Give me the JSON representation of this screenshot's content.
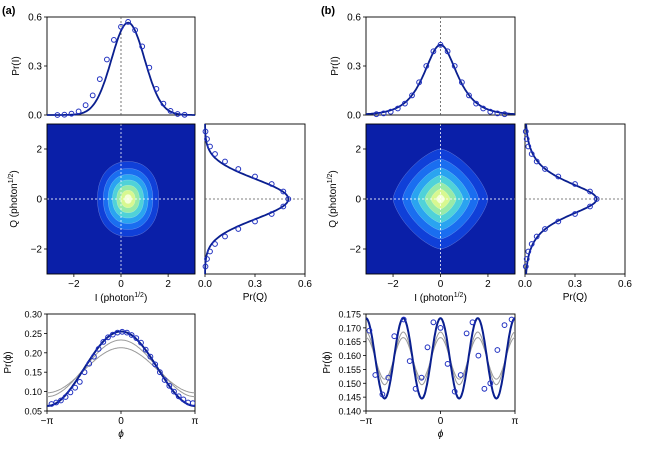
{
  "panel_labels": [
    "(a)",
    "(b)"
  ],
  "colors": {
    "model": "#0a1f8f",
    "data": "#2030c0",
    "gray": "#9a9a9a",
    "contour": [
      "#0a1fa8",
      "#1040d8",
      "#1a6ef0",
      "#2aa4f0",
      "#50d2d8",
      "#98eaa8",
      "#d8f890",
      "#f5ffd8"
    ]
  },
  "chart_data": [
    {
      "panel": "a",
      "type": "line",
      "id": "a_prI",
      "ylabel": "Pr(I)",
      "xlim": [
        -3.14,
        3.14
      ],
      "ylim": [
        0,
        0.6
      ],
      "yticks": [
        0.0,
        0.3,
        0.6
      ],
      "ytick_labels": [
        "0.0",
        "0.3",
        "0.6"
      ],
      "curve": {
        "shape": "gaussian",
        "peak": 0.565,
        "center": 0.3,
        "sigma": 0.7
      },
      "points_x": [
        -2.7,
        -2.4,
        -2.1,
        -1.8,
        -1.5,
        -1.2,
        -0.9,
        -0.6,
        -0.3,
        0.0,
        0.3,
        0.6,
        0.9,
        1.2,
        1.5,
        1.8,
        2.1,
        2.4,
        2.7
      ],
      "points_y": [
        0.0,
        0.002,
        0.008,
        0.022,
        0.06,
        0.12,
        0.22,
        0.34,
        0.46,
        0.54,
        0.57,
        0.52,
        0.42,
        0.29,
        0.16,
        0.07,
        0.025,
        0.006,
        0.001
      ]
    },
    {
      "panel": "a",
      "type": "heatmap",
      "id": "a_map",
      "xlabel": "I (photon$^{1/2}$)",
      "ylabel": "Q (photon$^{1/2}$)",
      "xlabel_text": "I (photon",
      "ylabel_text": "Q (photon",
      "unit_exp": "1/2",
      "xlim": [
        -3.14,
        3.14
      ],
      "ylim": [
        -3,
        3
      ],
      "xticks": [
        -2,
        0,
        2
      ],
      "xtick_labels": [
        "−2",
        "0",
        "2"
      ],
      "yticks": [
        -2,
        0,
        2
      ],
      "ytick_labels": [
        "−2",
        "0",
        "2"
      ],
      "levels": {
        "center": [
          0.3,
          0
        ],
        "radii": [
          [
            1.3,
            1.5
          ],
          [
            1.05,
            1.22
          ],
          [
            0.85,
            0.98
          ],
          [
            0.66,
            0.76
          ],
          [
            0.48,
            0.55
          ],
          [
            0.3,
            0.35
          ],
          [
            0.15,
            0.18
          ]
        ],
        "power": 2.2
      }
    },
    {
      "panel": "a",
      "type": "line",
      "id": "a_prQ",
      "orientation": "vertical",
      "xlabel": "Pr(Q)",
      "xlim": [
        0,
        0.6
      ],
      "ylim": [
        -3,
        3
      ],
      "xticks": [
        0.0,
        0.3,
        0.6
      ],
      "xtick_labels": [
        "0.0",
        "0.3",
        "0.6"
      ],
      "curve": {
        "shape": "gaussian",
        "peak": 0.5,
        "center": 0,
        "sigma": 0.8
      },
      "points_q": [
        2.7,
        2.4,
        2.1,
        1.8,
        1.5,
        1.2,
        0.9,
        0.6,
        0.3,
        0.0,
        -0.3,
        -0.6,
        -0.9,
        -1.2,
        -1.5,
        -1.8,
        -2.1,
        -2.4,
        -2.7
      ],
      "points_p": [
        0.003,
        0.012,
        0.03,
        0.06,
        0.12,
        0.2,
        0.3,
        0.4,
        0.47,
        0.5,
        0.47,
        0.4,
        0.3,
        0.2,
        0.12,
        0.06,
        0.03,
        0.012,
        0.003
      ]
    },
    {
      "panel": "a",
      "type": "line",
      "id": "a_phase",
      "xlabel": "ϕ",
      "ylabel": "Pr(ϕ)",
      "xlim": [
        -3.14159,
        3.14159
      ],
      "ylim": [
        0.05,
        0.3
      ],
      "xticks": [
        -3.14159,
        0,
        3.14159
      ],
      "xtick_labels": [
        "−π",
        "0",
        "π"
      ],
      "yticks": [
        0.05,
        0.1,
        0.15,
        0.2,
        0.25,
        0.3
      ],
      "ytick_labels": [
        "0.05",
        "0.10",
        "0.15",
        "0.20",
        "0.25",
        "0.30"
      ],
      "series": [
        {
          "name": "model",
          "style": "thick",
          "mean": 0.159,
          "amp": 0.096,
          "freq": 1
        },
        {
          "name": "gray1",
          "style": "gray",
          "mean": 0.155,
          "amp": 0.058,
          "freq": 1
        },
        {
          "name": "gray2",
          "style": "gray",
          "mean": 0.16,
          "amp": 0.073,
          "freq": 1
        }
      ],
      "points_x": [
        -2.95,
        -2.75,
        -2.55,
        -2.35,
        -2.15,
        -1.95,
        -1.75,
        -1.55,
        -1.35,
        -1.15,
        -0.95,
        -0.75,
        -0.55,
        -0.35,
        -0.15,
        0.05,
        0.25,
        0.45,
        0.65,
        0.85,
        1.05,
        1.25,
        1.45,
        1.65,
        1.85,
        2.05,
        2.25,
        2.45,
        2.65,
        2.85,
        3.05
      ],
      "points_y": [
        0.068,
        0.072,
        0.077,
        0.086,
        0.098,
        0.11,
        0.125,
        0.15,
        0.172,
        0.19,
        0.21,
        0.228,
        0.24,
        0.247,
        0.252,
        0.254,
        0.252,
        0.246,
        0.238,
        0.226,
        0.208,
        0.19,
        0.17,
        0.15,
        0.13,
        0.115,
        0.1,
        0.088,
        0.08,
        0.072,
        0.07
      ]
    },
    {
      "panel": "b",
      "type": "line",
      "id": "b_prI",
      "ylabel": "Pr(I)",
      "xlim": [
        -3.14,
        3.14
      ],
      "ylim": [
        0,
        0.6
      ],
      "yticks": [
        0.0,
        0.3,
        0.6
      ],
      "ytick_labels": [
        "0.0",
        "0.3",
        "0.6"
      ],
      "curve": {
        "shape": "sech",
        "peak": 0.43,
        "center": 0,
        "sigma": 0.62
      },
      "points_x": [
        -2.7,
        -2.4,
        -2.1,
        -1.8,
        -1.5,
        -1.2,
        -0.9,
        -0.6,
        -0.3,
        0.0,
        0.3,
        0.6,
        0.9,
        1.2,
        1.5,
        1.8,
        2.1,
        2.4,
        2.7
      ],
      "points_y": [
        0.005,
        0.01,
        0.02,
        0.04,
        0.07,
        0.12,
        0.2,
        0.3,
        0.39,
        0.43,
        0.39,
        0.3,
        0.2,
        0.12,
        0.07,
        0.04,
        0.02,
        0.01,
        0.005
      ]
    },
    {
      "panel": "b",
      "type": "heatmap",
      "id": "b_map",
      "xlabel": "I (photon$^{1/2}$)",
      "ylabel": "Q (photon$^{1/2}$)",
      "xlabel_text": "I (photon",
      "ylabel_text": "Q (photon",
      "unit_exp": "1/2",
      "xlim": [
        -3.14,
        3.14
      ],
      "ylim": [
        -3,
        3
      ],
      "xticks": [
        -2,
        0,
        2
      ],
      "xtick_labels": [
        "−2",
        "0",
        "2"
      ],
      "yticks": [
        -2,
        0,
        2
      ],
      "ytick_labels": [
        "−2",
        "0",
        "2"
      ],
      "levels": {
        "center": [
          0,
          0
        ],
        "radii": [
          [
            2.0,
            2.0
          ],
          [
            1.6,
            1.6
          ],
          [
            1.25,
            1.25
          ],
          [
            0.95,
            0.95
          ],
          [
            0.66,
            0.66
          ],
          [
            0.4,
            0.4
          ],
          [
            0.18,
            0.18
          ]
        ],
        "power": 1.45
      }
    },
    {
      "panel": "b",
      "type": "line",
      "id": "b_prQ",
      "orientation": "vertical",
      "xlabel": "Pr(Q)",
      "xlim": [
        0,
        0.6
      ],
      "ylim": [
        -3,
        3
      ],
      "xticks": [
        0.0,
        0.3,
        0.6
      ],
      "xtick_labels": [
        "0.0",
        "0.3",
        "0.6"
      ],
      "curve": {
        "shape": "sech",
        "peak": 0.43,
        "center": 0,
        "sigma": 0.62
      },
      "points_q": [
        2.7,
        2.4,
        2.1,
        1.8,
        1.5,
        1.2,
        0.9,
        0.6,
        0.3,
        0.0,
        -0.3,
        -0.6,
        -0.9,
        -1.2,
        -1.5,
        -1.8,
        -2.1,
        -2.4,
        -2.7
      ],
      "points_p": [
        0.005,
        0.01,
        0.02,
        0.04,
        0.07,
        0.12,
        0.2,
        0.3,
        0.39,
        0.43,
        0.39,
        0.3,
        0.2,
        0.12,
        0.07,
        0.04,
        0.02,
        0.01,
        0.005
      ]
    },
    {
      "panel": "b",
      "type": "line",
      "id": "b_phase",
      "xlabel": "ϕ",
      "ylabel": "Pr(ϕ)",
      "xlim": [
        -3.14159,
        3.14159
      ],
      "ylim": [
        0.14,
        0.175
      ],
      "xticks": [
        -3.14159,
        0,
        3.14159
      ],
      "xtick_labels": [
        "−π",
        "0",
        "π"
      ],
      "yticks": [
        0.14,
        0.145,
        0.15,
        0.155,
        0.16,
        0.165,
        0.17,
        0.175
      ],
      "ytick_labels": [
        "0.140",
        "0.145",
        "0.150",
        "0.155",
        "0.160",
        "0.165",
        "0.170",
        "0.175"
      ],
      "series": [
        {
          "name": "model",
          "style": "thick",
          "mean": 0.159,
          "amp": 0.0145,
          "freq": 4
        },
        {
          "name": "gray1",
          "style": "gray",
          "mean": 0.159,
          "amp": 0.0095,
          "freq": 4
        },
        {
          "name": "gray2",
          "style": "gray",
          "mean": 0.159,
          "amp": 0.0075,
          "freq": 4
        }
      ],
      "points_x": [
        -3.0,
        -2.75,
        -2.45,
        -2.2,
        -1.95,
        -1.55,
        -1.3,
        -1.05,
        -0.8,
        -0.55,
        -0.3,
        0.0,
        0.3,
        0.6,
        0.85,
        1.1,
        1.35,
        1.6,
        1.85,
        2.1,
        2.4,
        2.7,
        3.0
      ],
      "points_y": [
        0.169,
        0.153,
        0.146,
        0.152,
        0.167,
        0.173,
        0.158,
        0.148,
        0.152,
        0.163,
        0.172,
        0.17,
        0.157,
        0.147,
        0.153,
        0.168,
        0.172,
        0.16,
        0.148,
        0.15,
        0.162,
        0.171,
        0.173
      ]
    }
  ]
}
